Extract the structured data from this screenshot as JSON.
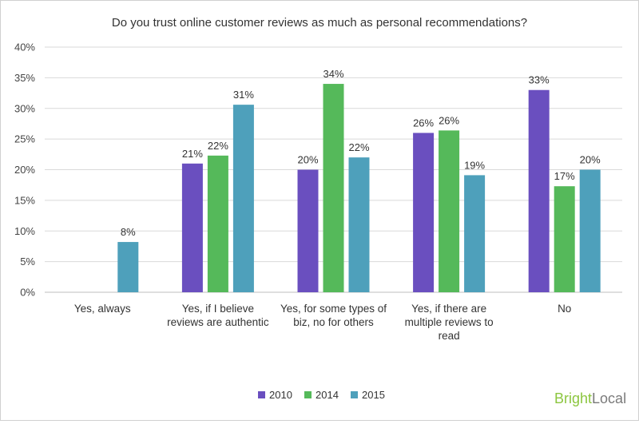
{
  "chart_data": {
    "type": "bar",
    "title": "Do you trust online customer reviews as much as personal recommendations?",
    "categories": [
      [
        "Yes, always"
      ],
      [
        "Yes, if I believe",
        "reviews are authentic"
      ],
      [
        "Yes, for some types of",
        "biz, no for others"
      ],
      [
        "Yes, if there are",
        "multiple reviews to",
        "read"
      ],
      [
        "No"
      ]
    ],
    "series": [
      {
        "name": "2010",
        "color": "#6a4fbf",
        "values": [
          null,
          21,
          20,
          26,
          33
        ],
        "labels": [
          "",
          "21%",
          "20%",
          "26%",
          "33%"
        ]
      },
      {
        "name": "2014",
        "color": "#55b95a",
        "values": [
          null,
          22.3,
          34,
          26.4,
          17.3
        ],
        "labels": [
          "",
          "22%",
          "34%",
          "26%",
          "17%"
        ]
      },
      {
        "name": "2015",
        "color": "#4ea0bb",
        "values": [
          8.2,
          30.6,
          22,
          19.1,
          20
        ],
        "labels": [
          "8%",
          "31%",
          "22%",
          "19%",
          "20%"
        ]
      }
    ],
    "ylim": [
      0,
      40
    ],
    "yticks": [
      0,
      5,
      10,
      15,
      20,
      25,
      30,
      35,
      40
    ],
    "ytick_labels": [
      "0%",
      "5%",
      "10%",
      "15%",
      "20%",
      "25%",
      "30%",
      "35%",
      "40%"
    ],
    "grid": true,
    "legend_position": "bottom"
  },
  "logo": {
    "part1": "Bright",
    "part2": "Local"
  }
}
